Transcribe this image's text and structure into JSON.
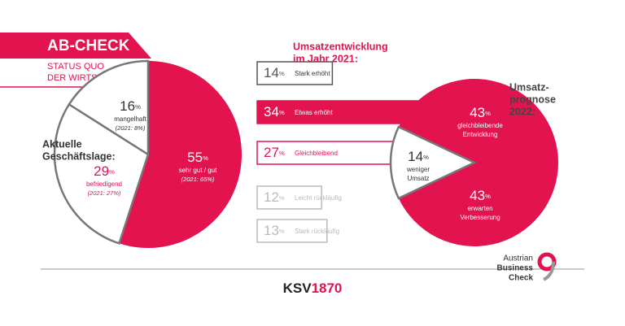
{
  "header": {
    "title": "AB-CHECK",
    "subtitle": [
      "STATUS QUO",
      "DER WIRTSCHAFT"
    ]
  },
  "chart_data": [
    {
      "type": "pie",
      "title": [
        "Aktuelle",
        "Geschäftslage:"
      ],
      "unit": "%",
      "categories": [
        "sehr gut / gut",
        "befriedigend",
        "mangelhaft"
      ],
      "values": [
        55,
        29,
        16
      ],
      "notes": [
        "(2021: 65%)",
        "(2021: 27%)",
        "(2021: 8%)"
      ],
      "colors": [
        "#e3134f",
        "#ffffff",
        "#ffffff"
      ]
    },
    {
      "type": "bar",
      "title": [
        "Umsatzentwicklung",
        "im Jahr 2021:"
      ],
      "unit": "%",
      "categories": [
        "Stark erhöht",
        "Etwas erhöht",
        "Gleichbleibend",
        "Leicht rückläufig",
        "Stark rückläufig"
      ],
      "values": [
        14,
        34,
        27,
        12,
        13
      ],
      "colors": [
        "#555555",
        "#e3134f",
        "#e3134f",
        "#bbbbbb",
        "#bbbbbb"
      ],
      "highlight": 1
    },
    {
      "type": "pie",
      "title": [
        "Umsatz-",
        "prognose",
        "2022:"
      ],
      "unit": "%",
      "categories": [
        [
          "gleichbleibende",
          "Entwicklung"
        ],
        [
          "erwarten",
          "Verbesserung"
        ],
        [
          "weniger",
          "Umsatz"
        ]
      ],
      "values": [
        43,
        43,
        14
      ],
      "colors": [
        "#e3134f",
        "#e3134f",
        "#ffffff"
      ]
    }
  ],
  "footer": {
    "brand": [
      "KSV",
      "1870"
    ],
    "logo": [
      "Austrian",
      "Business",
      "Check"
    ]
  }
}
